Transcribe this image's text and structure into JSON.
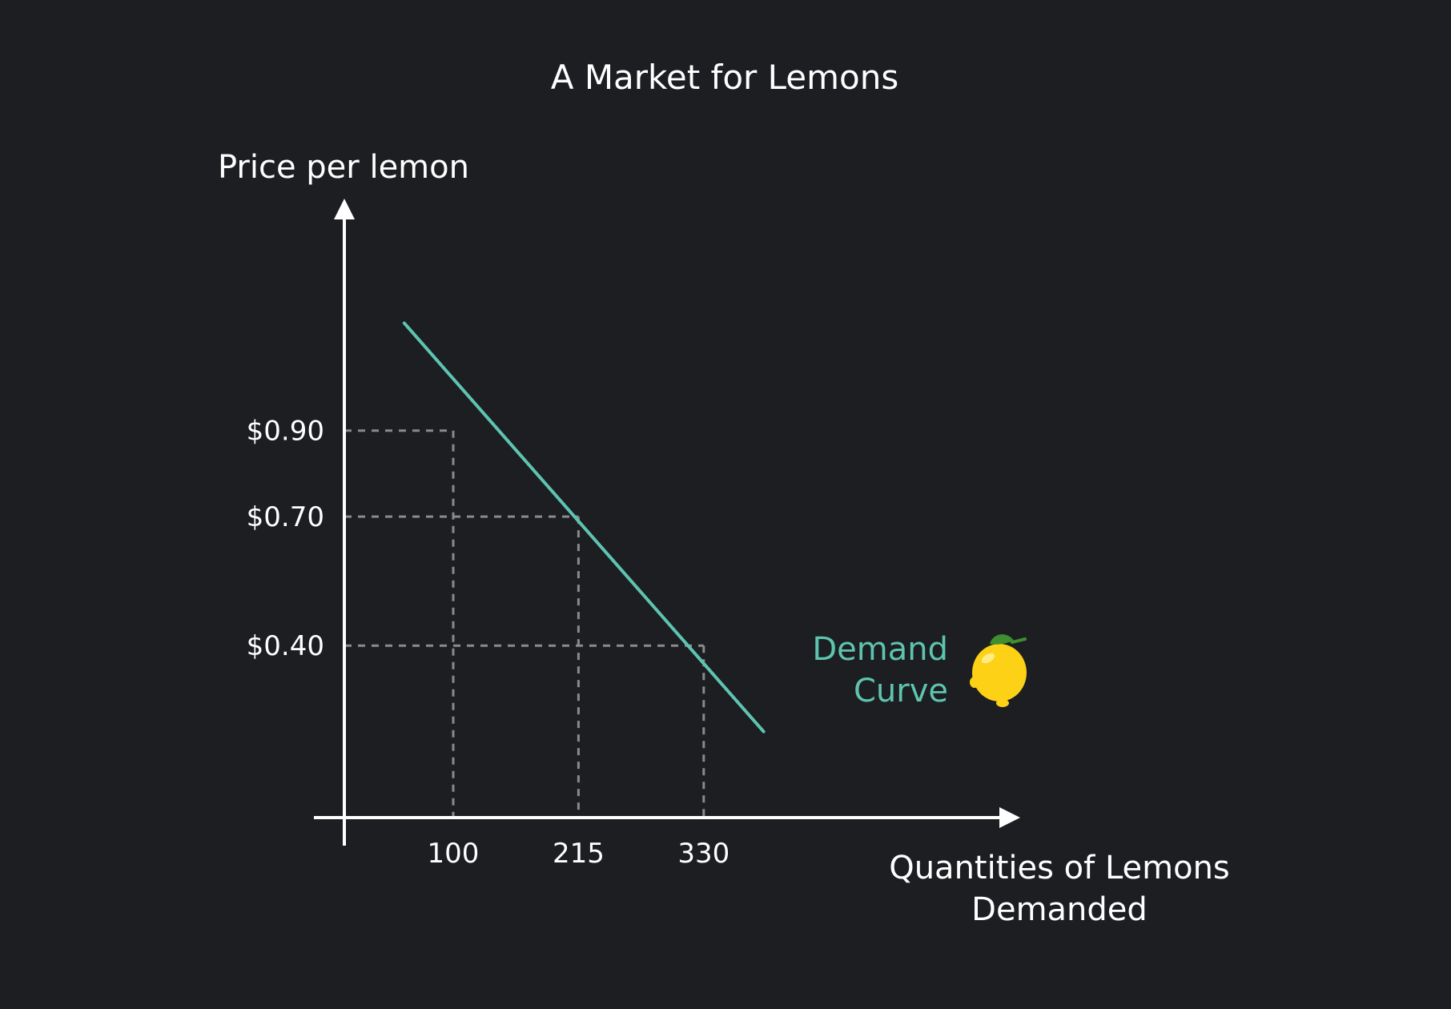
{
  "chart_data": {
    "type": "line",
    "title": "A Market for Lemons",
    "xlabel": [
      "Quantities of Lemons",
      "Demanded"
    ],
    "ylabel": "Price per lemon",
    "x_ticks": [
      "100",
      "215",
      "330"
    ],
    "y_ticks": [
      "$0.90",
      "$0.70",
      "$0.40"
    ],
    "series": [
      {
        "name": "Demand Curve",
        "name_lines": [
          "Demand",
          "Curve"
        ],
        "color": "#5ec4b0",
        "points": [
          {
            "x": 100,
            "y": 0.9
          },
          {
            "x": 215,
            "y": 0.7
          },
          {
            "x": 330,
            "y": 0.4
          }
        ],
        "line_extent": {
          "x": [
            55,
            385
          ],
          "y": [
            1.15,
            0.2
          ]
        }
      }
    ],
    "xlim": [
      0,
      500
    ],
    "ylim": [
      0,
      1.35
    ],
    "grid": "dashed guide lines to highlighted points",
    "colors": {
      "background": "#1c1e22",
      "axis": "#ffffff",
      "guide": "#8a8a8a",
      "demand": "#5ec4b0"
    },
    "icons": [
      "lemon-icon"
    ]
  }
}
